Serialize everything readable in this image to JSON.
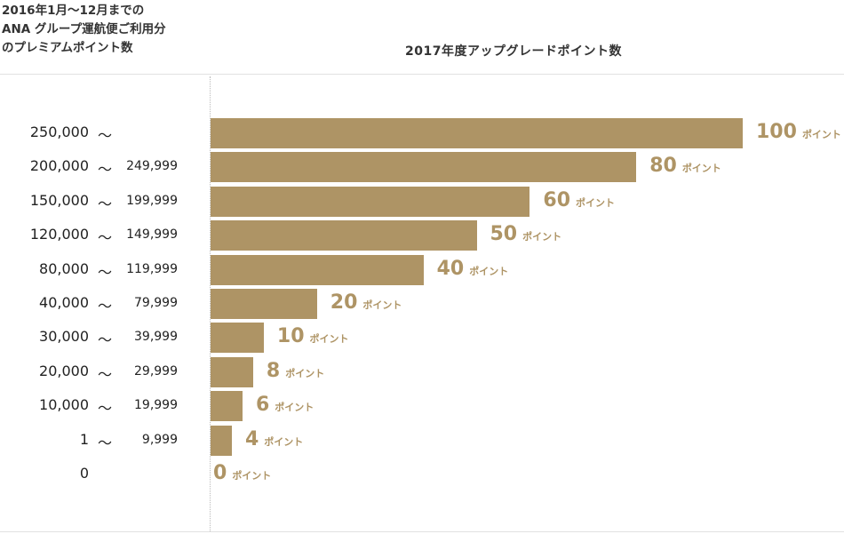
{
  "chart_data": {
    "type": "bar",
    "orientation": "horizontal",
    "title_left": [
      "2016年1月〜12月までの",
      "ANA グループ運航便ご利用分",
      "のプレミアムポイント数"
    ],
    "title_right": "2017年度アップグレードポイント数",
    "unit": "ポイント",
    "tilde": "〜",
    "bar_color": "#ae9465",
    "xlim": [
      0,
      100
    ],
    "categories": [
      {
        "from": "250,000",
        "to": ""
      },
      {
        "from": "200,000",
        "to": "249,999"
      },
      {
        "from": "150,000",
        "to": "199,999"
      },
      {
        "from": "120,000",
        "to": "149,999"
      },
      {
        "from": "80,000",
        "to": "119,999"
      },
      {
        "from": "40,000",
        "to": "79,999"
      },
      {
        "from": "30,000",
        "to": "39,999"
      },
      {
        "from": "20,000",
        "to": "29,999"
      },
      {
        "from": "10,000",
        "to": "19,999"
      },
      {
        "from": "1",
        "to": "9,999"
      },
      {
        "from": "0",
        "to": null
      }
    ],
    "values": [
      100,
      80,
      60,
      50,
      40,
      20,
      10,
      8,
      6,
      4,
      0
    ]
  }
}
